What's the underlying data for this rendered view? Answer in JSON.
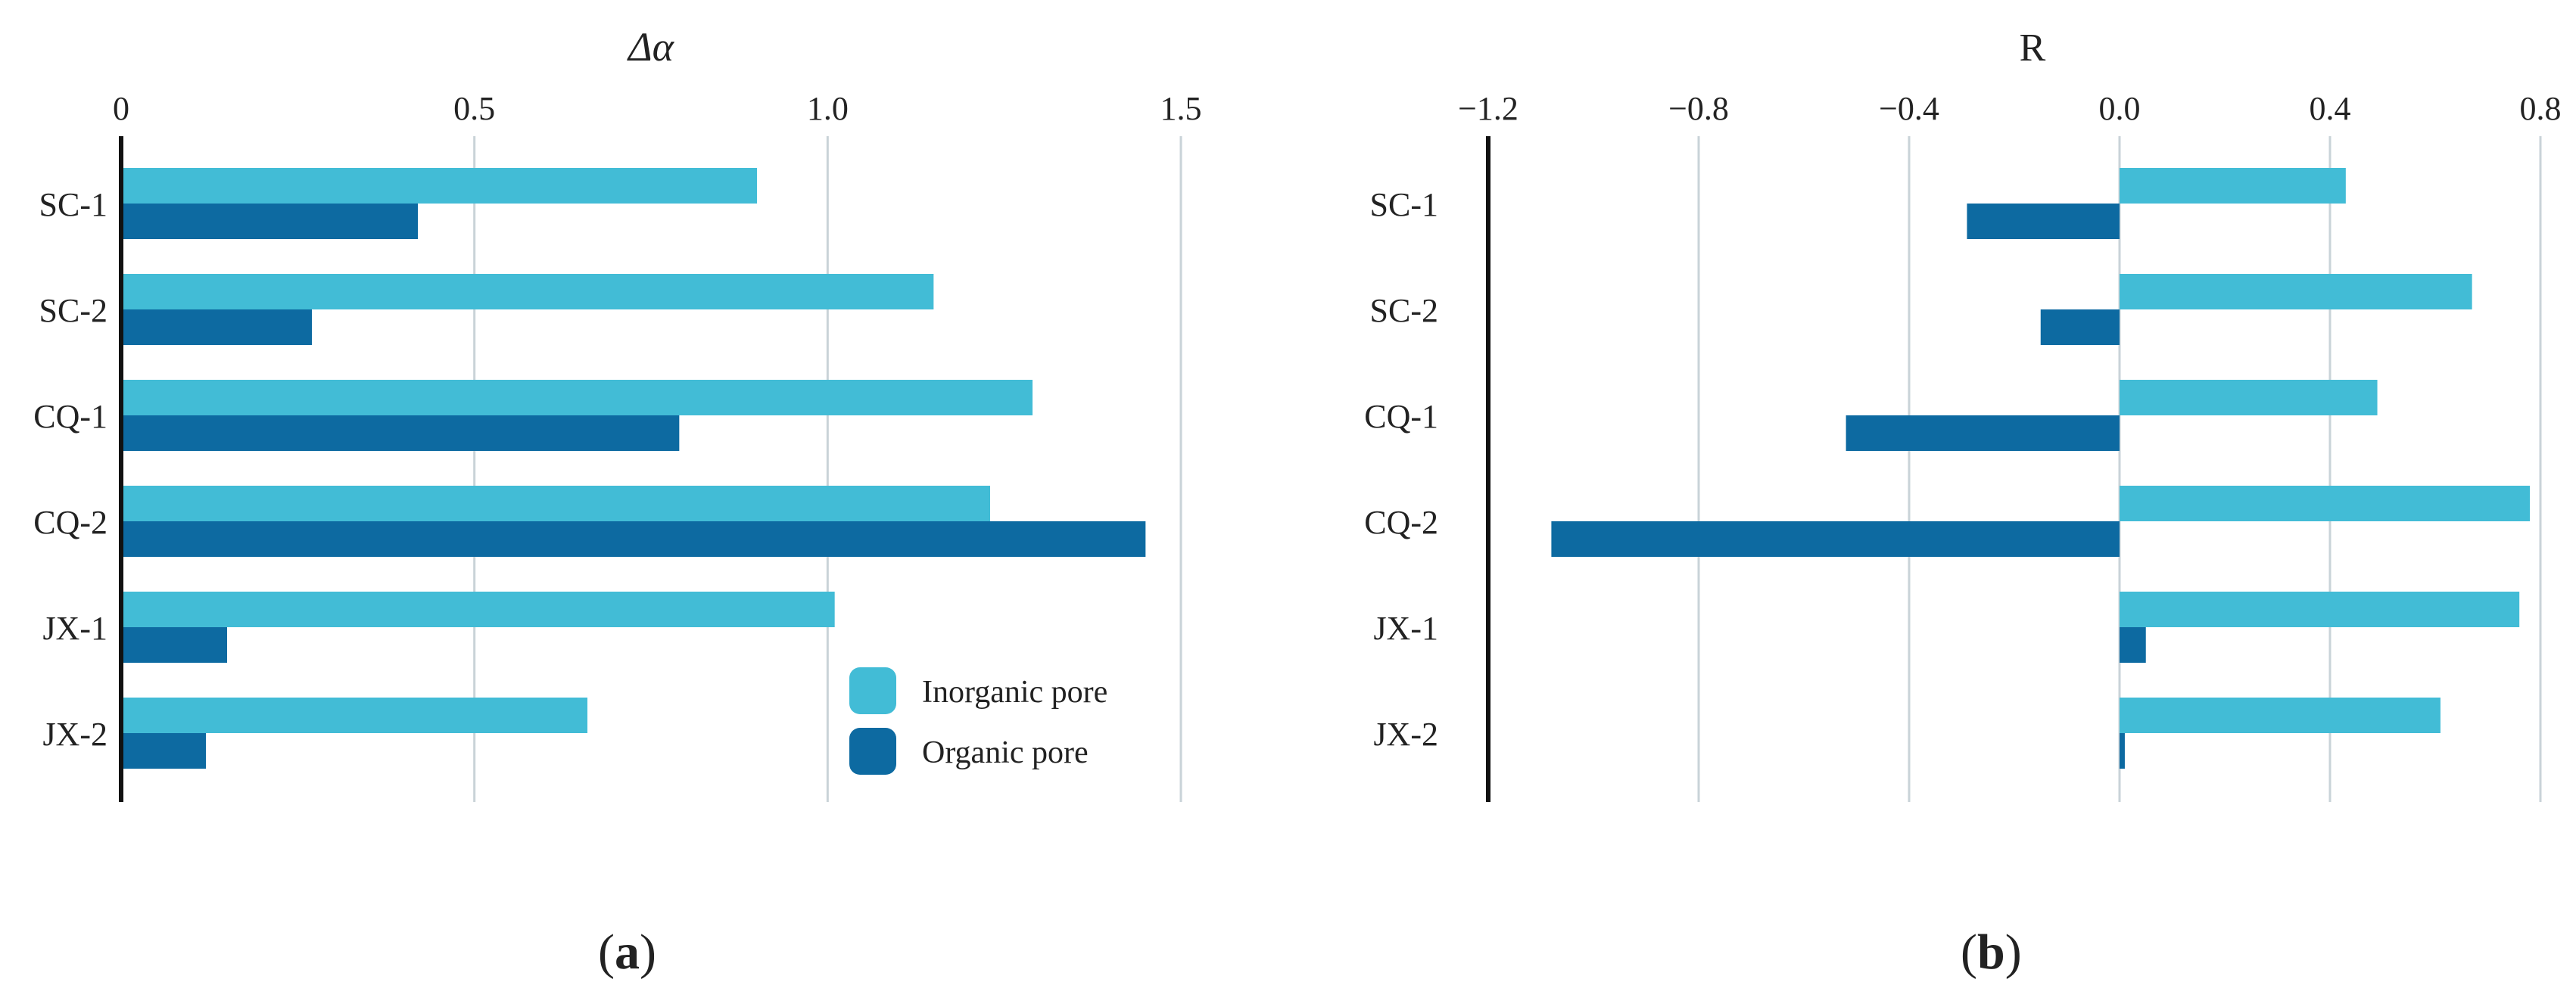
{
  "colors": {
    "inorganic": "#42BCD6",
    "organic": "#0D6AA1",
    "grid": "#C9D3D8",
    "axis": "#111111"
  },
  "legend": {
    "inorganic_label": "Inorganic pore",
    "organic_label": "Organic pore"
  },
  "chart_data": [
    {
      "panel": "(a)",
      "panel_letter": "a",
      "type": "bar",
      "orientation": "horizontal",
      "title": "Δα",
      "categories": [
        "SC-1",
        "SC-2",
        "CQ-1",
        "CQ-2",
        "JX-1",
        "JX-2"
      ],
      "series": [
        {
          "name": "Inorganic pore",
          "values": [
            0.9,
            1.15,
            1.29,
            1.23,
            1.01,
            0.66
          ]
        },
        {
          "name": "Organic pore",
          "values": [
            0.42,
            0.27,
            0.79,
            1.45,
            0.15,
            0.12
          ]
        }
      ],
      "xlim": [
        0,
        1.5
      ],
      "ticks": [
        0,
        0.5,
        1.0,
        1.5
      ],
      "tick_labels": [
        "0",
        "0.5",
        "1.0",
        "1.5"
      ],
      "grid": true,
      "legend_position": "bottom-right"
    },
    {
      "panel": "(b)",
      "panel_letter": "b",
      "type": "bar",
      "orientation": "horizontal",
      "title": "R",
      "categories": [
        "SC-1",
        "SC-2",
        "CQ-1",
        "CQ-2",
        "JX-1",
        "JX-2"
      ],
      "series": [
        {
          "name": "Inorganic pore",
          "values": [
            0.43,
            0.67,
            0.49,
            0.78,
            0.76,
            0.61
          ]
        },
        {
          "name": "Organic pore",
          "values": [
            -0.29,
            -0.15,
            -0.52,
            -1.08,
            0.05,
            0.01
          ]
        }
      ],
      "xlim": [
        -1.2,
        0.8
      ],
      "ticks": [
        -1.2,
        -0.8,
        -0.4,
        0.0,
        0.4,
        0.8
      ],
      "tick_labels": [
        "−1.2",
        "−0.8",
        "−0.4",
        "0.0",
        "0.4",
        "0.8"
      ],
      "grid": true
    }
  ]
}
